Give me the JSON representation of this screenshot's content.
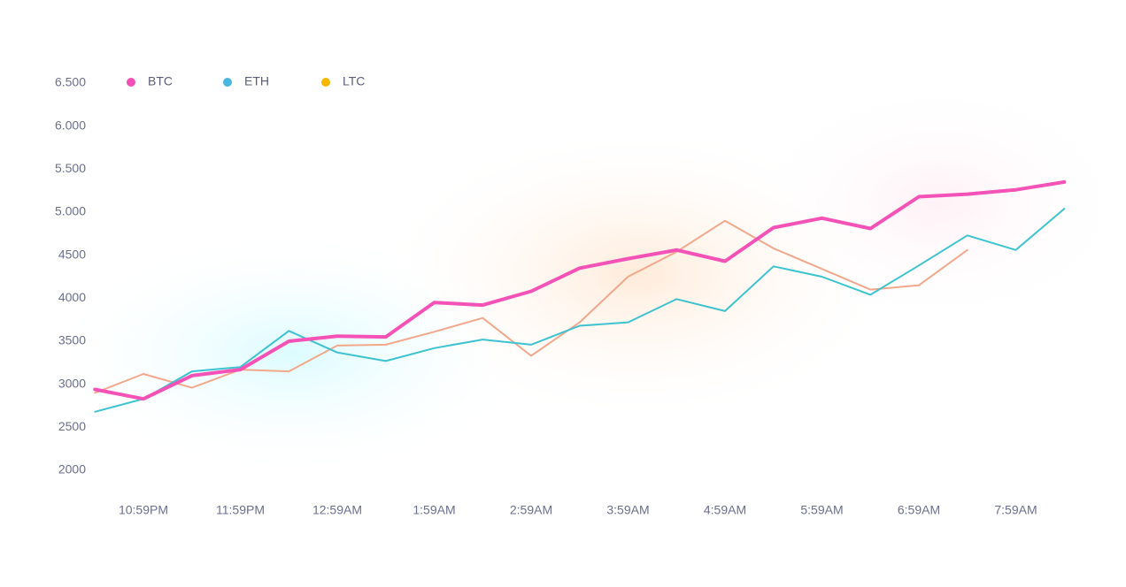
{
  "chart_data": {
    "type": "line",
    "categories": [
      null,
      "10:59PM",
      null,
      "11:59PM",
      null,
      "12:59AM",
      null,
      "1:59AM",
      null,
      "2:59AM",
      null,
      "3:59AM",
      null,
      "4:59AM",
      null,
      "5:59AM",
      null,
      "6:59AM",
      null,
      "7:59AM",
      null
    ],
    "series": [
      {
        "name": "LTC",
        "color": "#f5b700",
        "line_color": "#f2a88c",
        "width": 2,
        "values": [
          2900,
          3120,
          2960,
          3170,
          3150,
          3450,
          3460,
          3610,
          3770,
          3330,
          3720,
          4250,
          4540,
          4900,
          4580,
          4340,
          4100,
          4150,
          4560,
          null,
          null
        ]
      },
      {
        "name": "ETH",
        "color": "#4ab7e0",
        "line_color": "#3cc3cf",
        "width": 2,
        "values": [
          2680,
          2830,
          3150,
          3200,
          3620,
          3370,
          3270,
          3420,
          3520,
          3460,
          3680,
          3720,
          3990,
          3850,
          4370,
          4250,
          4040,
          4380,
          4730,
          4560,
          5040
        ]
      },
      {
        "name": "BTC",
        "color": "#f050b4",
        "line_color": "#f552b8",
        "width": 4,
        "values": [
          2940,
          2830,
          3100,
          3170,
          3500,
          3560,
          3550,
          3950,
          3920,
          4080,
          4350,
          4460,
          4560,
          4430,
          4820,
          4930,
          4810,
          5180,
          5210,
          5260,
          5350
        ]
      }
    ],
    "ylim": [
      2000,
      6500
    ],
    "yticks": [
      2000,
      2500,
      3000,
      3500,
      4000,
      4500,
      {
        "value": 5000,
        "label": "5.000"
      },
      {
        "value": 5500,
        "label": "5.500"
      },
      {
        "value": 6000,
        "label": "6.000"
      },
      {
        "value": 6500,
        "label": "6.500"
      }
    ],
    "grid": false
  }
}
